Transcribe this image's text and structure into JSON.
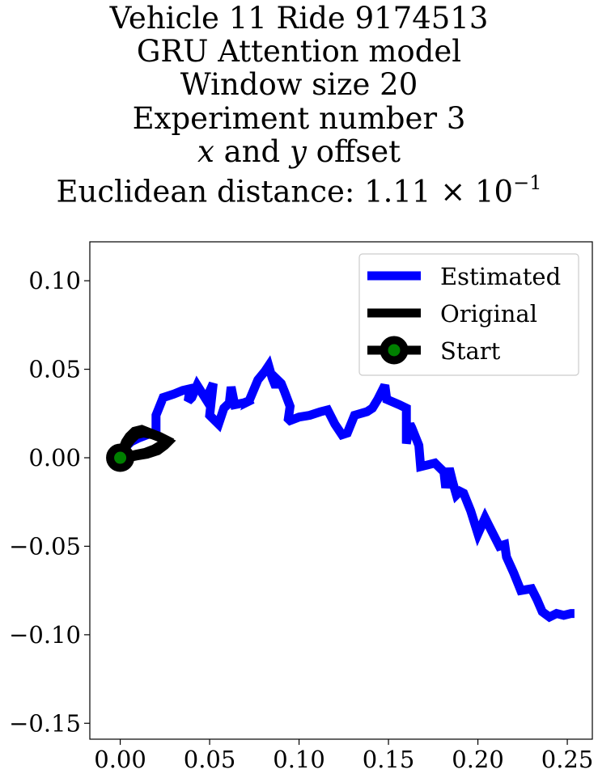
{
  "title": {
    "line1": "Vehicle 11 Ride 9174513",
    "line2": "GRU Attention model",
    "line3": "Window size 20",
    "line4": "Experiment number 3",
    "line5_x": "x",
    "line5_and": " and ",
    "line5_y": "y",
    "line5_rest": " offset",
    "line6_prefix": "Euclidean distance: 1.11 × 10",
    "line6_exp": "−1"
  },
  "chart_data": {
    "type": "line",
    "title": "Vehicle 11 Ride 9174513 GRU Attention model Window size 20 Experiment number 3 x and y offset Euclidean distance: 1.11 × 10^−1",
    "xlabel": "",
    "ylabel": "",
    "xlim": [
      -0.017,
      0.264
    ],
    "ylim": [
      -0.159,
      0.122
    ],
    "xticks": [
      0.0,
      0.05,
      0.1,
      0.15,
      0.2,
      0.25
    ],
    "xtick_labels": [
      "0.00",
      "0.05",
      "0.10",
      "0.15",
      "0.20",
      "0.25"
    ],
    "yticks": [
      0.1,
      0.05,
      0.0,
      -0.05,
      -0.1,
      -0.15
    ],
    "ytick_labels": [
      "0.10",
      "0.05",
      "0.00",
      "−0.05",
      "−0.10",
      "−0.15"
    ],
    "grid": false,
    "legend_position": "top-right",
    "series": [
      {
        "name": "Estimated",
        "color": "#0000ff",
        "x": [
          0.0,
          0.002,
          0.004,
          0.006,
          0.01,
          0.015,
          0.018,
          0.02,
          0.02,
          0.024,
          0.03,
          0.035,
          0.039,
          0.038,
          0.04,
          0.043,
          0.048,
          0.052,
          0.05,
          0.055,
          0.056,
          0.058,
          0.061,
          0.062,
          0.064,
          0.069,
          0.074,
          0.072,
          0.077,
          0.081,
          0.083,
          0.085,
          0.087,
          0.088,
          0.09,
          0.092,
          0.095,
          0.094,
          0.095,
          0.1,
          0.106,
          0.112,
          0.116,
          0.12,
          0.124,
          0.127,
          0.131,
          0.138,
          0.141,
          0.144,
          0.148,
          0.149,
          0.156,
          0.16,
          0.16,
          0.162,
          0.163,
          0.167,
          0.168,
          0.172,
          0.176,
          0.178,
          0.181,
          0.182,
          0.184,
          0.186,
          0.188,
          0.19,
          0.192,
          0.196,
          0.2,
          0.204,
          0.206,
          0.21,
          0.212,
          0.215,
          0.216,
          0.22,
          0.224,
          0.23,
          0.233,
          0.236,
          0.24,
          0.244,
          0.248,
          0.252,
          0.254
        ],
        "y": [
          0.0,
          0.004,
          0.007,
          0.009,
          0.011,
          0.013,
          0.014,
          0.015,
          0.024,
          0.034,
          0.036,
          0.038,
          0.039,
          0.032,
          0.034,
          0.041,
          0.033,
          0.042,
          0.024,
          0.019,
          0.022,
          0.028,
          0.031,
          0.04,
          0.03,
          0.031,
          0.033,
          0.032,
          0.044,
          0.049,
          0.052,
          0.045,
          0.04,
          0.044,
          0.042,
          0.037,
          0.029,
          0.022,
          0.021,
          0.023,
          0.024,
          0.026,
          0.027,
          0.019,
          0.013,
          0.014,
          0.024,
          0.026,
          0.028,
          0.033,
          0.041,
          0.033,
          0.03,
          0.028,
          0.008,
          0.019,
          0.017,
          0.007,
          -0.005,
          -0.004,
          -0.003,
          -0.005,
          -0.008,
          -0.017,
          -0.006,
          -0.014,
          -0.021,
          -0.019,
          -0.02,
          -0.03,
          -0.043,
          -0.034,
          -0.038,
          -0.046,
          -0.05,
          -0.049,
          -0.056,
          -0.065,
          -0.075,
          -0.074,
          -0.08,
          -0.087,
          -0.09,
          -0.088,
          -0.089,
          -0.088,
          -0.088
        ]
      },
      {
        "name": "Original",
        "color": "#000000",
        "x": [
          0.0,
          0.001,
          0.003,
          0.005,
          0.008,
          0.012,
          0.017,
          0.022,
          0.026,
          0.024,
          0.019,
          0.014,
          0.009,
          0.005,
          0.002,
          0.001,
          0.003,
          0.006,
          0.009,
          0.013,
          0.018,
          0.023,
          0.027,
          0.025,
          0.021,
          0.015,
          0.009,
          0.004,
          0.002,
          0.001,
          0.0
        ],
        "y": [
          0.0,
          0.004,
          0.009,
          0.012,
          0.015,
          0.016,
          0.014,
          0.012,
          0.01,
          0.008,
          0.005,
          0.003,
          0.002,
          0.001,
          0.001,
          0.003,
          0.006,
          0.01,
          0.013,
          0.014,
          0.013,
          0.011,
          0.009,
          0.007,
          0.004,
          0.002,
          0.001,
          0.0,
          0.001,
          0.001,
          0.0
        ]
      }
    ],
    "start": {
      "name": "Start",
      "x": 0.0,
      "y": 0.0,
      "marker_edge": "#000000",
      "marker_face": "#008000"
    }
  }
}
